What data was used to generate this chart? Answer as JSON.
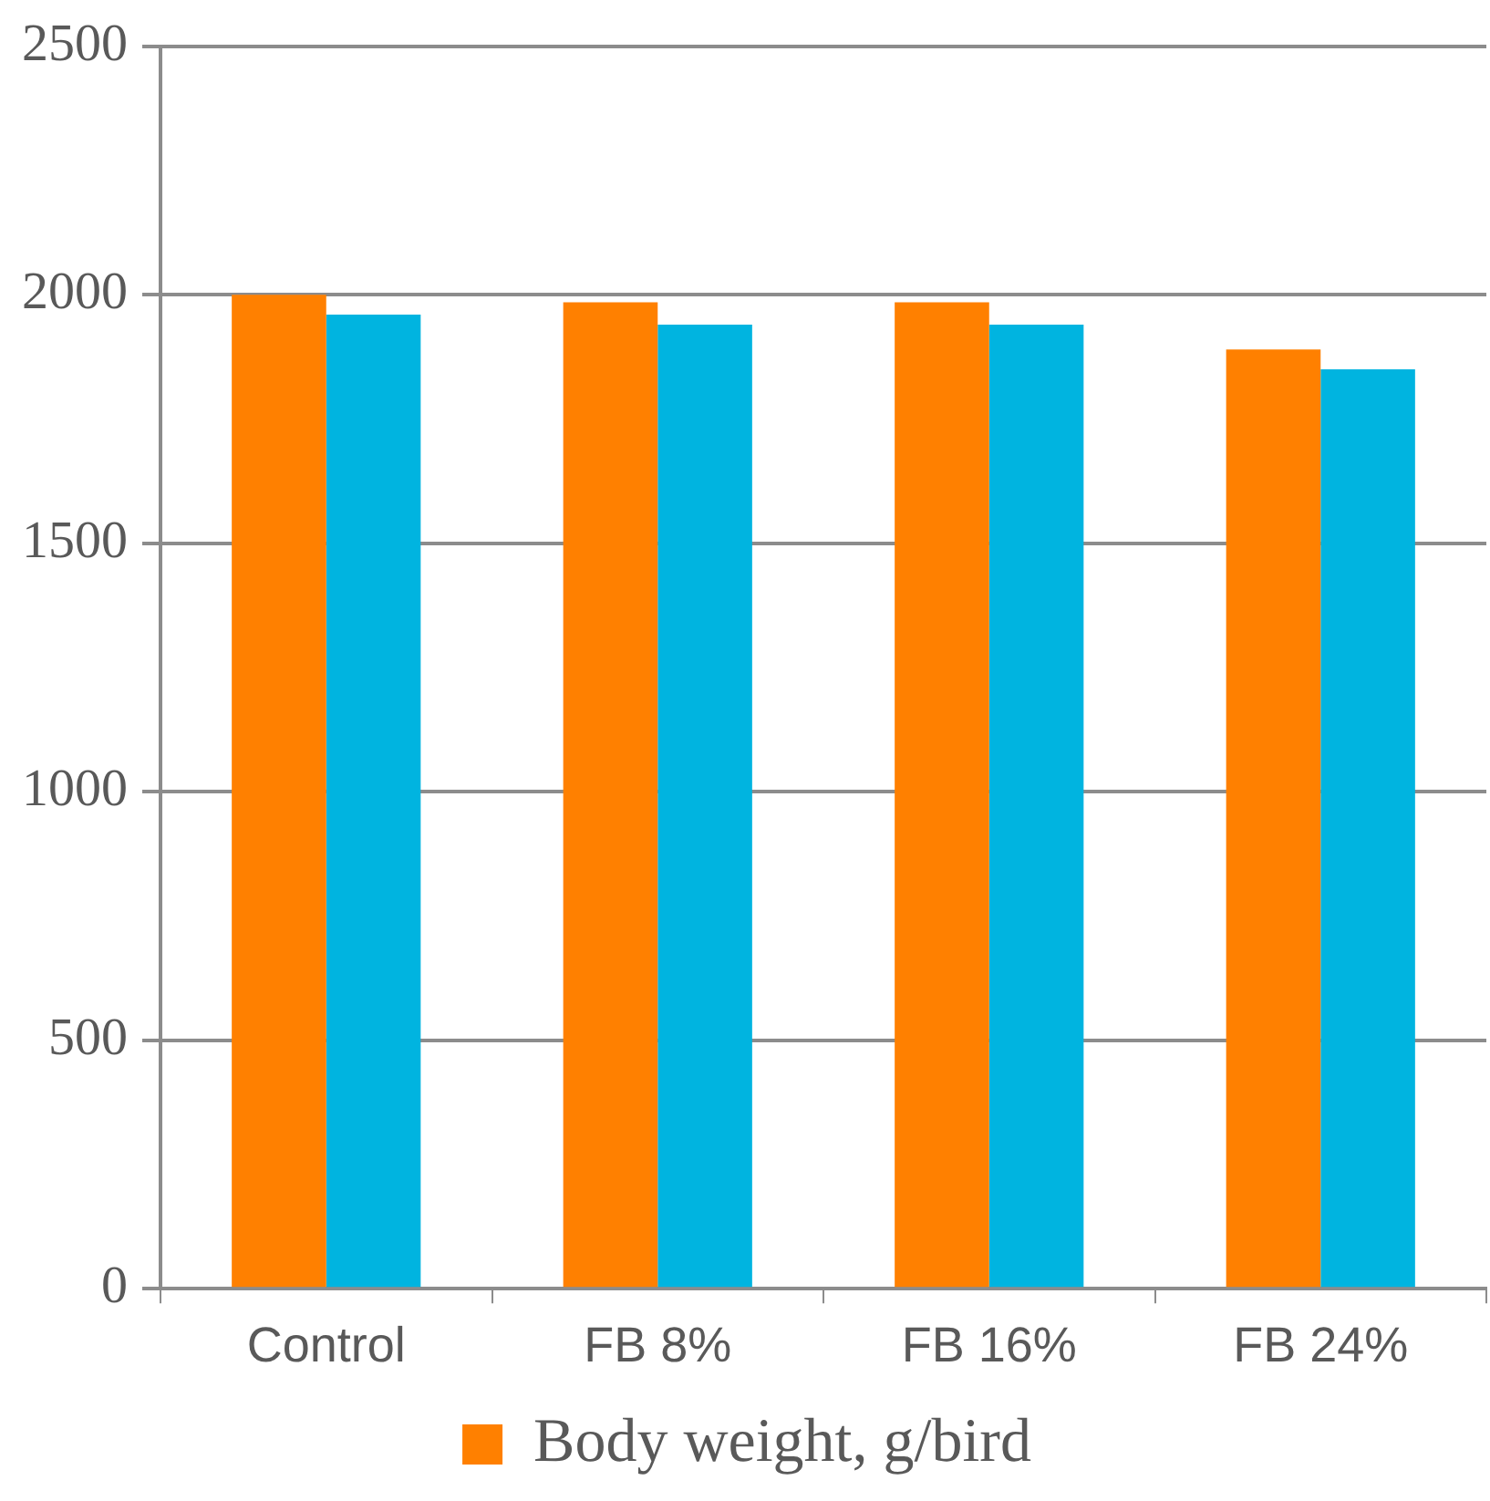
{
  "chart_data": {
    "type": "bar",
    "categories": [
      "Control",
      "FB 8%",
      "FB 16%",
      "FB 24%"
    ],
    "series": [
      {
        "name": "Body weight, g/bird",
        "color": "#ff8000",
        "values": [
          2000,
          1985,
          1985,
          1890
        ]
      },
      {
        "color": "#00b4e0",
        "values": [
          1960,
          1940,
          1940,
          1850
        ]
      }
    ],
    "ylim": [
      0,
      2500
    ],
    "yticks": [
      0,
      500,
      1000,
      1500,
      2000,
      2500
    ],
    "grid": "y",
    "legend": "bottom"
  }
}
